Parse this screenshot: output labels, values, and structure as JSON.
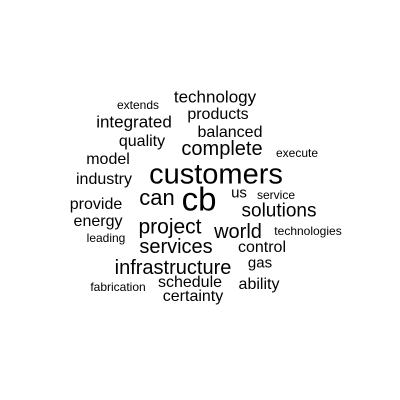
{
  "word_cloud": {
    "background_color": "#ffffff",
    "text_color": "#000000",
    "words": {
      "technology": "technology",
      "extends": "extends",
      "products": "products",
      "integrated": "integrated",
      "balanced": "balanced",
      "quality": "quality",
      "complete": "complete",
      "execute": "execute",
      "model": "model",
      "customers": "customers",
      "industry": "industry",
      "us": "us",
      "service": "service",
      "cb": "cb",
      "can": "can",
      "provide": "provide",
      "solutions": "solutions",
      "energy": "energy",
      "project": "project",
      "world": "world",
      "technologies": "technologies",
      "leading": "leading",
      "services": "services",
      "control": "control",
      "gas": "gas",
      "infrastructure": "infrastructure",
      "fabrication": "fabrication",
      "schedule": "schedule",
      "ability": "ability",
      "certainty": "certainty"
    }
  }
}
